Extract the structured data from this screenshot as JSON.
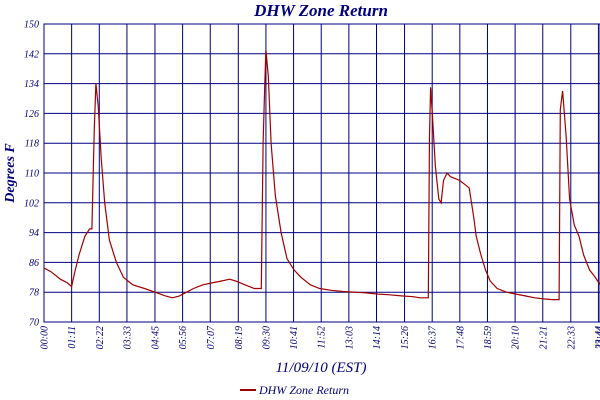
{
  "chart_data": {
    "type": "line",
    "title": "DHW Zone Return",
    "xlabel": "11/09/10 (EST)",
    "ylabel": "Degrees F",
    "ylim": [
      70,
      150
    ],
    "y_ticks": [
      "70",
      "78",
      "86",
      "94",
      "102",
      "110",
      "118",
      "126",
      "134",
      "142",
      "150"
    ],
    "x_tick_labels": [
      "00:00",
      "01:11",
      "02:22",
      "03:33",
      "04:45",
      "05:56",
      "07:07",
      "08:19",
      "09:30",
      "10:41",
      "11:52",
      "13:03",
      "14:14",
      "15:26",
      "16:37",
      "17:48",
      "18:59",
      "20:10",
      "21:21",
      "22:33",
      "23:44",
      "23:44"
    ],
    "x_tick_hours": [
      0,
      1.183,
      2.367,
      3.55,
      4.75,
      5.933,
      7.117,
      8.317,
      9.5,
      10.683,
      11.867,
      13.05,
      14.233,
      15.433,
      16.617,
      17.8,
      18.983,
      20.167,
      21.35,
      22.55,
      23.733,
      23.8
    ],
    "grid": true,
    "legend_position": "bottom-center",
    "series": [
      {
        "name": "DHW Zone Return",
        "color": "#a00000",
        "x_hours": [
          0,
          0.3,
          0.7,
          1.0,
          1.18,
          1.3,
          1.5,
          1.75,
          1.95,
          2.05,
          2.15,
          2.22,
          2.32,
          2.45,
          2.6,
          2.8,
          3.1,
          3.4,
          3.8,
          4.3,
          4.75,
          5.2,
          5.5,
          5.8,
          6.1,
          6.4,
          6.8,
          7.2,
          7.6,
          7.95,
          8.2,
          8.6,
          9.0,
          9.3,
          9.38,
          9.45,
          9.5,
          9.6,
          9.72,
          9.9,
          10.15,
          10.4,
          10.7,
          11.0,
          11.4,
          11.8,
          12.3,
          12.8,
          13.3,
          13.8,
          14.3,
          14.8,
          15.3,
          15.8,
          16.1,
          16.45,
          16.5,
          16.55,
          16.62,
          16.75,
          16.9,
          17.0,
          17.1,
          17.25,
          17.4,
          17.6,
          17.8,
          18.0,
          18.2,
          18.4,
          18.5,
          18.7,
          18.9,
          19.1,
          19.4,
          19.8,
          20.2,
          20.6,
          21.0,
          21.4,
          21.75,
          22.05,
          22.1,
          22.2,
          22.35,
          22.5,
          22.7,
          22.9,
          23.1,
          23.35,
          23.6,
          23.8
        ],
        "values": [
          84.5,
          83.5,
          81.5,
          80.5,
          79.5,
          83,
          88,
          93,
          95,
          95,
          121,
          134,
          128,
          114,
          102,
          92,
          86,
          82,
          80,
          79,
          78,
          77,
          76.5,
          77,
          78,
          79,
          80,
          80.5,
          81,
          81.5,
          81,
          80,
          79,
          79,
          118,
          134,
          143,
          136,
          118,
          104,
          94,
          87,
          84,
          82,
          80,
          79,
          78.5,
          78.2,
          78,
          77.8,
          77.5,
          77.3,
          77,
          76.8,
          76.5,
          76.5,
          120,
          133,
          126,
          112,
          103,
          102,
          108,
          110,
          109,
          108.5,
          108,
          107,
          106,
          98,
          93,
          88,
          84,
          81,
          79,
          78,
          77.5,
          77,
          76.5,
          76.2,
          76,
          76,
          127,
          132,
          120,
          103,
          96,
          93,
          88,
          84,
          82,
          80
        ]
      }
    ]
  }
}
